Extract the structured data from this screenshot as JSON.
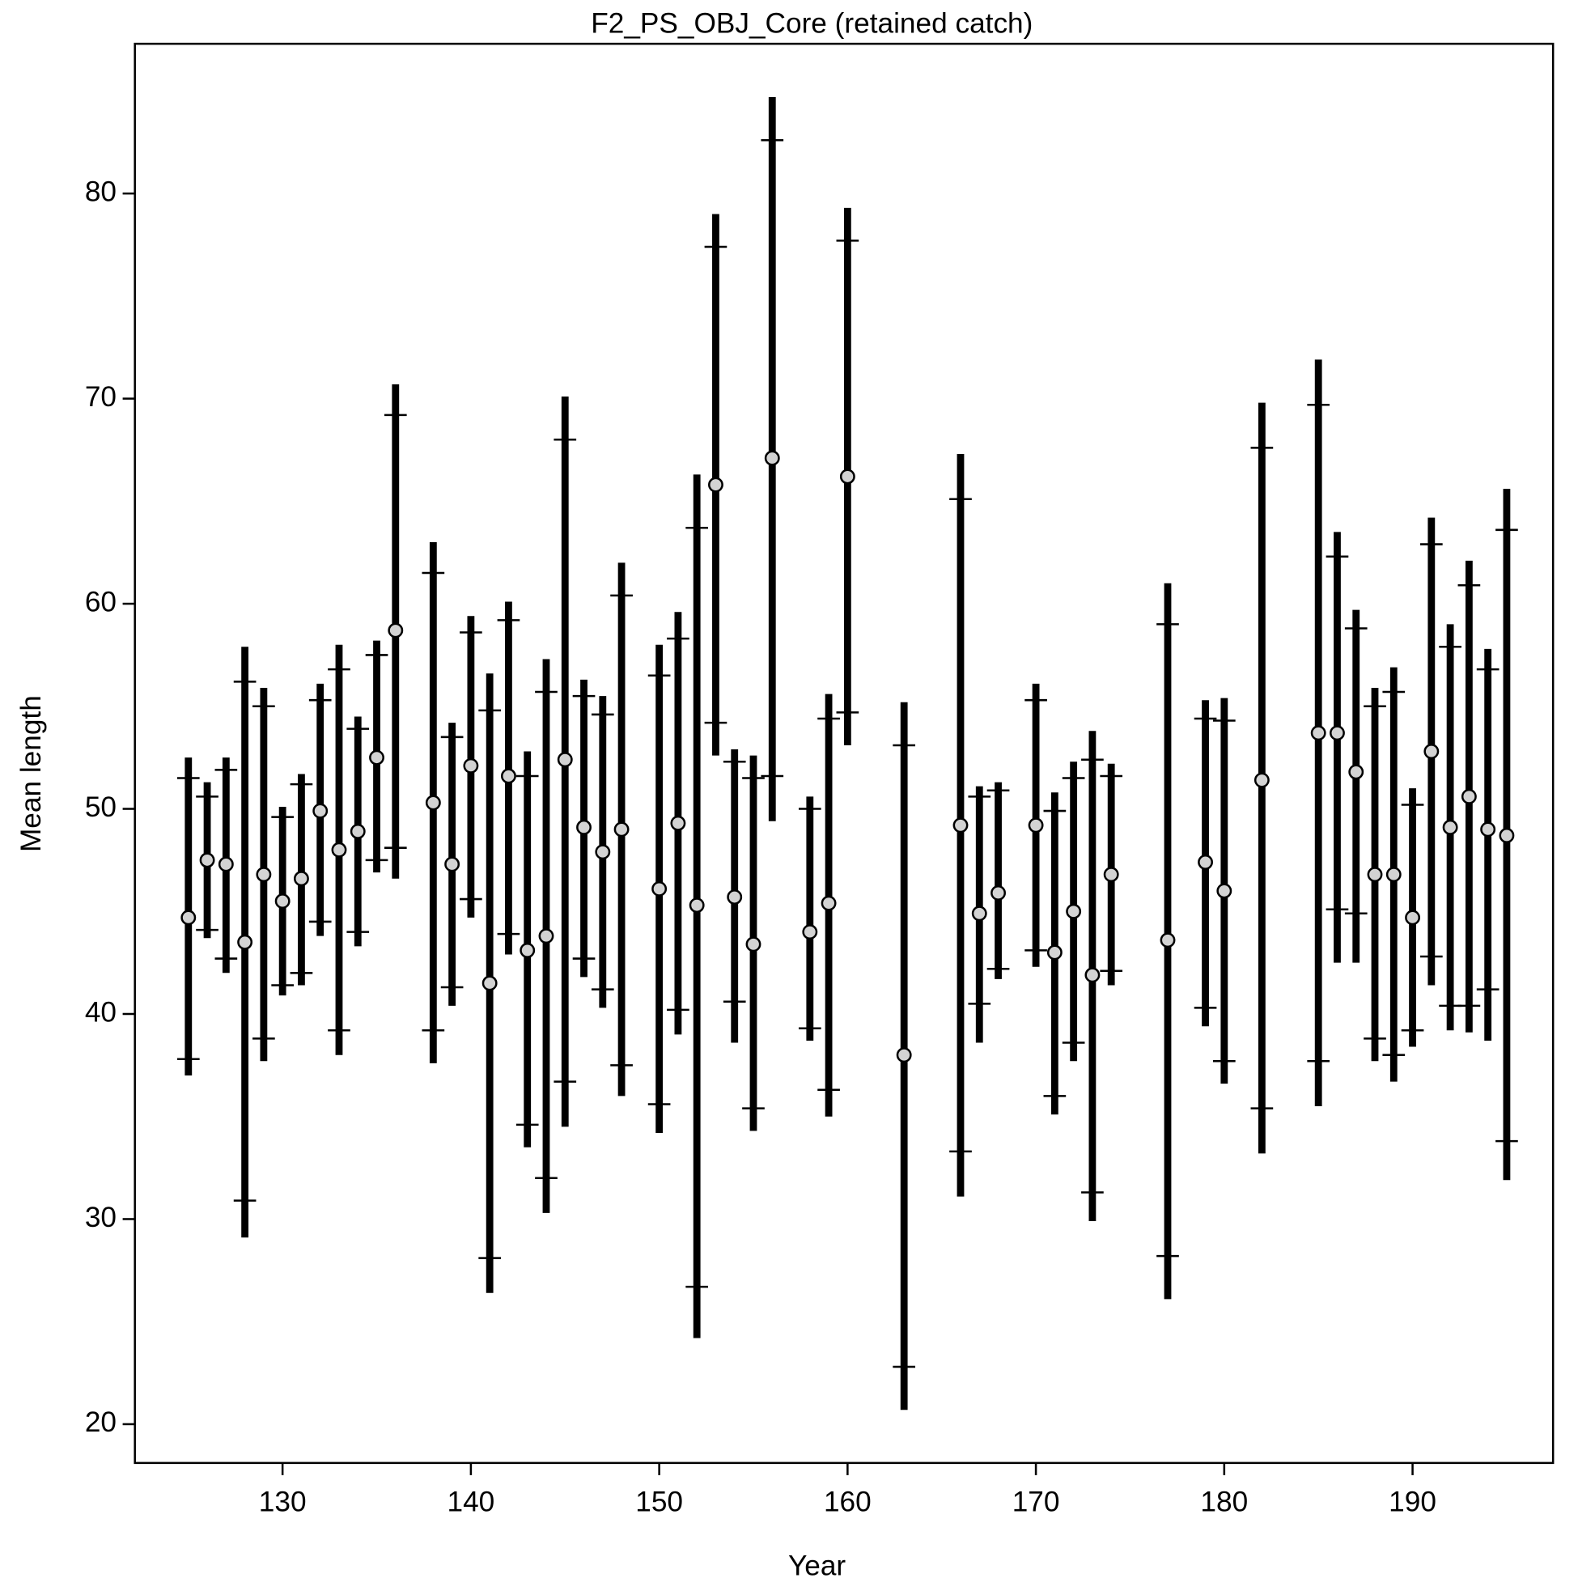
{
  "chart_data": {
    "type": "errorbar",
    "title": "F2_PS_OBJ_Core (retained catch)",
    "x_label": "Year",
    "y_label": "Mean length",
    "xlim": [
      122.16,
      197.46
    ],
    "ylim": [
      18.11,
      87.3
    ],
    "xticks": [
      130,
      140,
      150,
      160,
      170,
      180,
      190
    ],
    "yticks": [
      20,
      30,
      40,
      50,
      60,
      70,
      80
    ],
    "bar_color": "#000000",
    "point_color": "#d3d3d3",
    "x": [
      125,
      126,
      127,
      128,
      129,
      130,
      131,
      132,
      133,
      134,
      135,
      136,
      138,
      139,
      140,
      141,
      142,
      143,
      144,
      145,
      146,
      147,
      148,
      150,
      151,
      152,
      153,
      154,
      155,
      156,
      158,
      159,
      160,
      163,
      166,
      167,
      168,
      170,
      171,
      172,
      173,
      174,
      177,
      179,
      180,
      182,
      185,
      186,
      187,
      188,
      189,
      190,
      191,
      192,
      193,
      194,
      195
    ],
    "values": [
      44.7,
      47.5,
      47.3,
      43.5,
      46.8,
      45.5,
      46.6,
      49.9,
      48.0,
      48.9,
      52.5,
      58.7,
      50.3,
      47.3,
      52.1,
      41.5,
      51.6,
      43.1,
      43.8,
      52.4,
      49.1,
      47.9,
      49.0,
      46.1,
      49.3,
      45.3,
      65.8,
      45.7,
      43.4,
      67.1,
      44.0,
      45.4,
      66.2,
      38.0,
      49.2,
      44.9,
      45.9,
      49.2,
      43.0,
      45.0,
      41.9,
      46.8,
      43.6,
      47.4,
      46.0,
      51.4,
      53.7,
      53.7,
      51.8,
      46.8,
      46.8,
      44.7,
      52.8,
      49.1,
      50.6,
      49.0,
      48.7
    ],
    "inner_low": [
      37.8,
      44.1,
      42.7,
      30.9,
      38.8,
      41.4,
      42.0,
      44.5,
      39.2,
      44.0,
      47.5,
      48.1,
      39.2,
      41.3,
      45.6,
      28.1,
      43.9,
      34.6,
      32.0,
      36.7,
      42.7,
      41.2,
      37.5,
      35.6,
      40.2,
      26.7,
      54.2,
      40.6,
      35.4,
      51.6,
      39.3,
      36.3,
      54.7,
      22.8,
      33.3,
      40.5,
      42.2,
      43.1,
      36.0,
      38.6,
      31.3,
      42.1,
      28.2,
      40.3,
      37.7,
      35.4,
      37.7,
      45.1,
      44.9,
      38.8,
      38.0,
      39.2,
      42.8,
      40.4,
      40.4,
      41.2,
      33.8
    ],
    "inner_high": [
      51.5,
      50.6,
      51.9,
      56.2,
      55.0,
      49.6,
      51.2,
      55.3,
      56.8,
      53.9,
      57.5,
      69.2,
      61.5,
      53.5,
      58.6,
      54.8,
      59.2,
      51.6,
      55.7,
      68.0,
      55.5,
      54.6,
      60.4,
      56.5,
      58.3,
      63.7,
      77.4,
      52.3,
      51.5,
      82.6,
      50.0,
      54.4,
      77.7,
      53.1,
      65.1,
      50.6,
      50.9,
      55.3,
      49.9,
      51.5,
      52.4,
      51.6,
      59.0,
      54.4,
      54.3,
      67.6,
      69.7,
      62.3,
      58.8,
      55.0,
      55.7,
      50.2,
      62.9,
      57.9,
      60.9,
      56.8,
      63.6
    ],
    "outer_low": [
      37.0,
      43.7,
      42.0,
      29.1,
      37.7,
      40.9,
      41.4,
      43.8,
      38.0,
      43.3,
      46.9,
      46.6,
      37.6,
      40.4,
      44.7,
      26.4,
      42.9,
      33.5,
      30.3,
      34.5,
      41.8,
      40.3,
      36.0,
      34.2,
      39.0,
      24.2,
      52.6,
      38.6,
      34.3,
      49.4,
      38.7,
      35.0,
      53.1,
      20.7,
      31.1,
      38.6,
      41.7,
      42.3,
      35.1,
      37.7,
      29.9,
      41.4,
      26.1,
      39.4,
      36.6,
      33.2,
      35.5,
      42.5,
      42.5,
      37.7,
      36.7,
      38.4,
      41.4,
      39.2,
      39.1,
      38.7,
      31.9
    ],
    "outer_high": [
      52.5,
      51.3,
      52.5,
      57.9,
      55.9,
      50.1,
      51.7,
      56.1,
      58.0,
      54.5,
      58.2,
      70.7,
      63.0,
      54.2,
      59.4,
      56.6,
      60.1,
      52.8,
      57.3,
      70.1,
      56.3,
      55.5,
      62.0,
      58.0,
      59.6,
      66.3,
      79.0,
      52.9,
      52.6,
      84.7,
      50.6,
      55.6,
      79.3,
      55.2,
      67.3,
      51.1,
      51.3,
      56.1,
      50.8,
      52.3,
      53.8,
      52.2,
      61.0,
      55.3,
      55.4,
      69.8,
      71.9,
      63.5,
      59.7,
      55.9,
      56.9,
      51.0,
      64.2,
      59.0,
      62.1,
      57.8,
      65.6
    ]
  }
}
